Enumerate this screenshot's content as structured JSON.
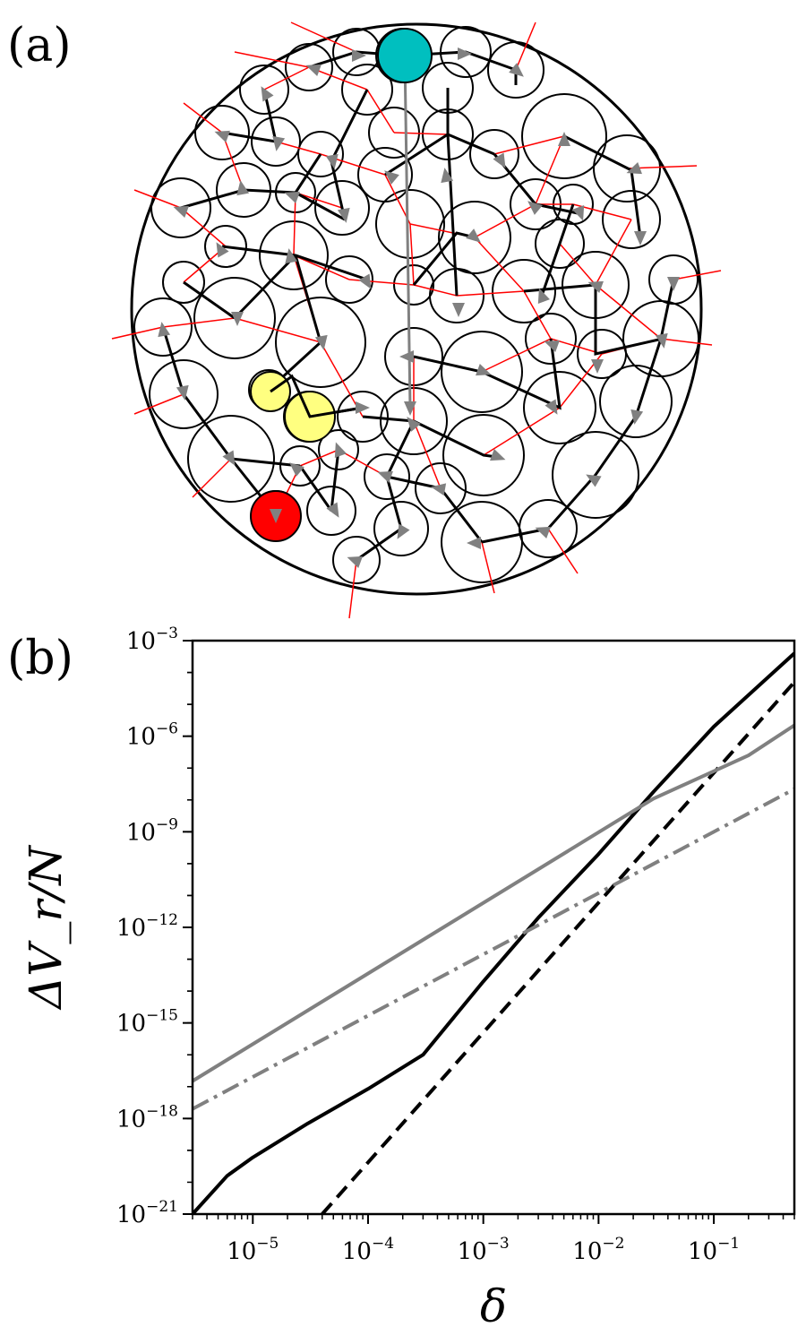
{
  "panel_a": {
    "label": "(a)",
    "colors": {
      "boundary": "#000000",
      "particle_edge": "#000000",
      "contact_network": "#ff0000",
      "path": "#000000",
      "arrow": "#808080",
      "highlight_top": "#00bfbf",
      "highlight_bottom": "#ff0000",
      "highlight_pair": "#ffff80"
    }
  },
  "panel_b": {
    "label": "(b)"
  },
  "chart_data": {
    "type": "line",
    "title": "",
    "xlabel": "δ",
    "ylabel": "ΔV_r/N",
    "xscale": "log",
    "yscale": "log",
    "xlim": [
      3e-06,
      0.5
    ],
    "ylim": [
      1e-21,
      0.001
    ],
    "grid": false,
    "xticks": [
      {
        "value": 1e-05,
        "base": "10",
        "exp": "−5"
      },
      {
        "value": 0.0001,
        "base": "10",
        "exp": "−4"
      },
      {
        "value": 0.001,
        "base": "10",
        "exp": "−3"
      },
      {
        "value": 0.01,
        "base": "10",
        "exp": "−2"
      },
      {
        "value": 0.1,
        "base": "10",
        "exp": "−1"
      }
    ],
    "yticks": [
      {
        "value": 1e-21,
        "base": "10",
        "exp": "−21"
      },
      {
        "value": 1e-18,
        "base": "10",
        "exp": "−18"
      },
      {
        "value": 1e-15,
        "base": "10",
        "exp": "−15"
      },
      {
        "value": 1e-12,
        "base": "10",
        "exp": "−12"
      },
      {
        "value": 1e-09,
        "base": "10",
        "exp": "−9"
      },
      {
        "value": 1e-06,
        "base": "10",
        "exp": "−6"
      },
      {
        "value": 0.001,
        "base": "10",
        "exp": "−3"
      }
    ],
    "series": [
      {
        "style": "solid",
        "color": "#000000",
        "x": [
          3e-06,
          6e-06,
          1e-05,
          3e-05,
          0.0001,
          0.0003,
          0.001,
          0.003,
          0.01,
          0.03,
          0.1,
          0.5
        ],
        "y": [
          1e-21,
          1.6e-20,
          6e-20,
          7e-19,
          8.5e-18,
          1e-16,
          2e-14,
          2e-12,
          2e-10,
          1.8e-08,
          2e-06,
          0.0004
        ]
      },
      {
        "style": "dashed",
        "color": "#000000",
        "x": [
          4e-05,
          0.5
        ],
        "y": [
          1e-21,
          5e-05
        ]
      },
      {
        "style": "solid",
        "color": "#808080",
        "x": [
          3e-06,
          0.03,
          0.2,
          0.5
        ],
        "y": [
          1.5e-17,
          1.1e-08,
          2.5e-07,
          2.2e-06
        ]
      },
      {
        "style": "dashdot",
        "color": "#808080",
        "x": [
          3e-06,
          0.5
        ],
        "y": [
          2e-18,
          2.2e-08
        ]
      }
    ]
  }
}
